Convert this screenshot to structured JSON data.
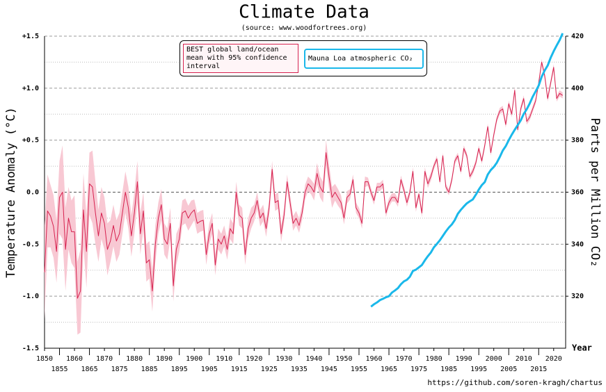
{
  "chart_data": {
    "type": "line",
    "title": "Climate Data",
    "subtitle": "(source: www.woodfortrees.org)",
    "y_label": "Temperature Anomaly (°C)",
    "y2_label": "Parts per Million CO₂",
    "x_label": "Year",
    "footer": "https://github.com/soren-kragh/chartus",
    "legend": "top",
    "grid": true,
    "xlim": [
      1850,
      2024
    ],
    "xticks": [
      1850,
      1855,
      1860,
      1865,
      1870,
      1875,
      1880,
      1885,
      1890,
      1895,
      1900,
      1905,
      1910,
      1915,
      1920,
      1925,
      1930,
      1935,
      1940,
      1945,
      1950,
      1955,
      1960,
      1965,
      1970,
      1975,
      1980,
      1985,
      1990,
      1995,
      2000,
      2005,
      2010,
      2015,
      2020
    ],
    "ylim": [
      -1.5,
      1.5
    ],
    "yticks": [
      {
        "value": -1.5,
        "label": "-1.5"
      },
      {
        "value": -1,
        "label": "-1.0"
      },
      {
        "value": -0.5,
        "label": "-0.5"
      },
      {
        "value": 0,
        "label": "0.0"
      },
      {
        "value": 0.5,
        "label": "+0.5"
      },
      {
        "value": 1,
        "label": "+1.0"
      },
      {
        "value": 1.5,
        "label": "+1.5"
      }
    ],
    "yminorticks": [
      -1.25,
      -0.75,
      -0.25,
      0.25,
      0.75,
      1.25
    ],
    "y2lim": [
      300,
      420
    ],
    "y2ticks": [
      320,
      340,
      360,
      380,
      400,
      420
    ],
    "series": [
      {
        "name": "BEST global land/ocean mean with 95% confidence interval",
        "color": "#d6204e",
        "band_color": "#f8c8d3",
        "x": [
          1850,
          1851,
          1852,
          1853,
          1854,
          1855,
          1856,
          1857,
          1858,
          1859,
          1860,
          1861,
          1862,
          1863,
          1864,
          1865,
          1866,
          1867,
          1868,
          1869,
          1870,
          1871,
          1872,
          1873,
          1874,
          1875,
          1876,
          1877,
          1878,
          1879,
          1880,
          1881,
          1882,
          1883,
          1884,
          1885,
          1886,
          1887,
          1888,
          1889,
          1890,
          1891,
          1892,
          1893,
          1894,
          1895,
          1896,
          1897,
          1898,
          1899,
          1900,
          1901,
          1902,
          1903,
          1904,
          1905,
          1906,
          1907,
          1908,
          1909,
          1910,
          1911,
          1912,
          1913,
          1914,
          1915,
          1916,
          1917,
          1918,
          1919,
          1920,
          1921,
          1922,
          1923,
          1924,
          1925,
          1926,
          1927,
          1928,
          1929,
          1930,
          1931,
          1932,
          1933,
          1934,
          1935,
          1936,
          1937,
          1938,
          1939,
          1940,
          1941,
          1942,
          1943,
          1944,
          1945,
          1946,
          1947,
          1948,
          1949,
          1950,
          1951,
          1952,
          1953,
          1954,
          1955,
          1956,
          1957,
          1958,
          1959,
          1960,
          1961,
          1962,
          1963,
          1964,
          1965,
          1966,
          1967,
          1968,
          1969,
          1970,
          1971,
          1972,
          1973,
          1974,
          1975,
          1976,
          1977,
          1978,
          1979,
          1980,
          1981,
          1982,
          1983,
          1984,
          1985,
          1986,
          1987,
          1988,
          1989,
          1990,
          1991,
          1992,
          1993,
          1994,
          1995,
          1996,
          1997,
          1998,
          1999,
          2000,
          2001,
          2002,
          2003,
          2004,
          2005,
          2006,
          2007,
          2008,
          2009,
          2010,
          2011,
          2012,
          2013,
          2014,
          2015,
          2016,
          2017,
          2018,
          2019,
          2020,
          2021,
          2022,
          2023
        ],
        "values": [
          -0.77,
          -0.18,
          -0.23,
          -0.33,
          -0.57,
          -0.05,
          0.0,
          -0.55,
          -0.25,
          -0.38,
          -0.38,
          -1.02,
          -0.95,
          -0.17,
          -0.57,
          0.08,
          0.05,
          -0.2,
          -0.42,
          -0.2,
          -0.3,
          -0.55,
          -0.47,
          -0.32,
          -0.47,
          -0.4,
          -0.2,
          0.0,
          -0.15,
          -0.42,
          -0.2,
          0.1,
          -0.4,
          -0.18,
          -0.68,
          -0.65,
          -0.95,
          -0.5,
          -0.25,
          -0.12,
          -0.45,
          -0.5,
          -0.3,
          -0.9,
          -0.55,
          -0.45,
          -0.2,
          -0.18,
          -0.25,
          -0.2,
          -0.17,
          -0.3,
          -0.28,
          -0.27,
          -0.6,
          -0.4,
          -0.3,
          -0.7,
          -0.45,
          -0.5,
          -0.42,
          -0.55,
          -0.35,
          -0.4,
          0.0,
          -0.22,
          -0.25,
          -0.6,
          -0.35,
          -0.25,
          -0.2,
          -0.08,
          -0.25,
          -0.2,
          -0.35,
          -0.15,
          0.22,
          -0.1,
          -0.08,
          -0.4,
          -0.22,
          0.1,
          -0.1,
          -0.3,
          -0.25,
          -0.32,
          -0.2,
          0.0,
          0.08,
          0.05,
          0.0,
          0.18,
          0.05,
          0.0,
          0.38,
          0.15,
          -0.05,
          0.0,
          -0.05,
          -0.1,
          -0.25,
          -0.05,
          -0.02,
          0.12,
          -0.15,
          -0.2,
          -0.3,
          0.1,
          0.1,
          0.0,
          -0.08,
          0.05,
          0.05,
          0.08,
          -0.2,
          -0.1,
          -0.05,
          -0.05,
          -0.1,
          0.12,
          0.02,
          -0.1,
          0.0,
          0.2,
          -0.15,
          -0.02,
          -0.2,
          0.2,
          0.08,
          0.15,
          0.25,
          0.32,
          0.1,
          0.35,
          0.05,
          0.0,
          0.12,
          0.3,
          0.35,
          0.2,
          0.42,
          0.35,
          0.15,
          0.2,
          0.28,
          0.42,
          0.3,
          0.45,
          0.63,
          0.38,
          0.55,
          0.7,
          0.78,
          0.8,
          0.65,
          0.85,
          0.75,
          0.98,
          0.6,
          0.8,
          0.9,
          0.68,
          0.72,
          0.8,
          0.88,
          1.05,
          1.25,
          1.12,
          0.9,
          1.05,
          1.2,
          0.9,
          0.95,
          0.93
        ],
        "uncertainty": [
          0.45,
          0.35,
          0.3,
          0.3,
          0.3,
          0.35,
          0.45,
          0.4,
          0.3,
          0.3,
          0.35,
          0.35,
          0.4,
          0.35,
          0.35,
          0.3,
          0.35,
          0.3,
          0.25,
          0.25,
          0.25,
          0.25,
          0.2,
          0.2,
          0.2,
          0.2,
          0.2,
          0.2,
          0.2,
          0.2,
          0.2,
          0.2,
          0.2,
          0.18,
          0.18,
          0.18,
          0.2,
          0.18,
          0.15,
          0.15,
          0.15,
          0.15,
          0.15,
          0.15,
          0.15,
          0.12,
          0.12,
          0.12,
          0.12,
          0.12,
          0.1,
          0.1,
          0.1,
          0.1,
          0.1,
          0.1,
          0.1,
          0.1,
          0.1,
          0.1,
          0.1,
          0.1,
          0.1,
          0.1,
          0.1,
          0.1,
          0.1,
          0.1,
          0.1,
          0.1,
          0.08,
          0.08,
          0.08,
          0.08,
          0.08,
          0.08,
          0.08,
          0.08,
          0.08,
          0.08,
          0.07,
          0.07,
          0.07,
          0.07,
          0.07,
          0.07,
          0.07,
          0.07,
          0.07,
          0.07,
          0.08,
          0.1,
          0.1,
          0.1,
          0.12,
          0.12,
          0.1,
          0.08,
          0.08,
          0.07,
          0.06,
          0.06,
          0.05,
          0.05,
          0.05,
          0.05,
          0.05,
          0.05,
          0.04,
          0.04,
          0.04,
          0.04,
          0.04,
          0.04,
          0.04,
          0.04,
          0.04,
          0.04,
          0.04,
          0.04,
          0.04,
          0.04,
          0.04,
          0.04,
          0.04,
          0.04,
          0.04,
          0.04,
          0.04,
          0.04,
          0.03,
          0.03,
          0.03,
          0.03,
          0.03,
          0.03,
          0.03,
          0.03,
          0.03,
          0.03,
          0.03,
          0.03,
          0.03,
          0.03,
          0.03,
          0.03,
          0.03,
          0.03,
          0.03,
          0.03,
          0.03,
          0.03,
          0.03,
          0.03,
          0.03,
          0.03,
          0.03,
          0.03,
          0.03,
          0.03,
          0.03,
          0.03,
          0.03,
          0.03,
          0.03,
          0.03,
          0.03,
          0.03,
          0.03,
          0.03,
          0.03,
          0.03,
          0.03,
          0.03
        ]
      },
      {
        "name": "Mauna Loa atmospheric CO₂",
        "color": "#1ab8ea",
        "axis": "y2",
        "x": [
          1959,
          1960,
          1961,
          1962,
          1963,
          1964,
          1965,
          1966,
          1967,
          1968,
          1969,
          1970,
          1971,
          1972,
          1973,
          1974,
          1975,
          1976,
          1977,
          1978,
          1979,
          1980,
          1981,
          1982,
          1983,
          1984,
          1985,
          1986,
          1987,
          1988,
          1989,
          1990,
          1991,
          1992,
          1993,
          1994,
          1995,
          1996,
          1997,
          1998,
          1999,
          2000,
          2001,
          2002,
          2003,
          2004,
          2005,
          2006,
          2007,
          2008,
          2009,
          2010,
          2011,
          2012,
          2013,
          2014,
          2015,
          2016,
          2017,
          2018,
          2019,
          2020,
          2021,
          2022,
          2023
        ],
        "values": [
          316.0,
          316.9,
          317.6,
          318.5,
          319.0,
          319.6,
          320.0,
          321.4,
          322.2,
          323.1,
          324.6,
          325.7,
          326.3,
          327.5,
          329.7,
          330.2,
          331.1,
          332.0,
          333.8,
          335.4,
          336.8,
          338.8,
          340.1,
          341.5,
          343.2,
          344.9,
          346.4,
          347.6,
          349.3,
          351.7,
          353.2,
          354.5,
          355.7,
          356.5,
          357.2,
          359.0,
          361.0,
          362.7,
          363.9,
          366.8,
          368.5,
          369.7,
          371.3,
          373.5,
          376.0,
          377.7,
          380.0,
          382.1,
          384.0,
          385.8,
          387.6,
          390.1,
          391.9,
          394.1,
          396.7,
          398.8,
          401.0,
          404.4,
          406.8,
          408.7,
          411.7,
          414.2,
          416.4,
          418.5,
          421.1
        ]
      }
    ]
  }
}
